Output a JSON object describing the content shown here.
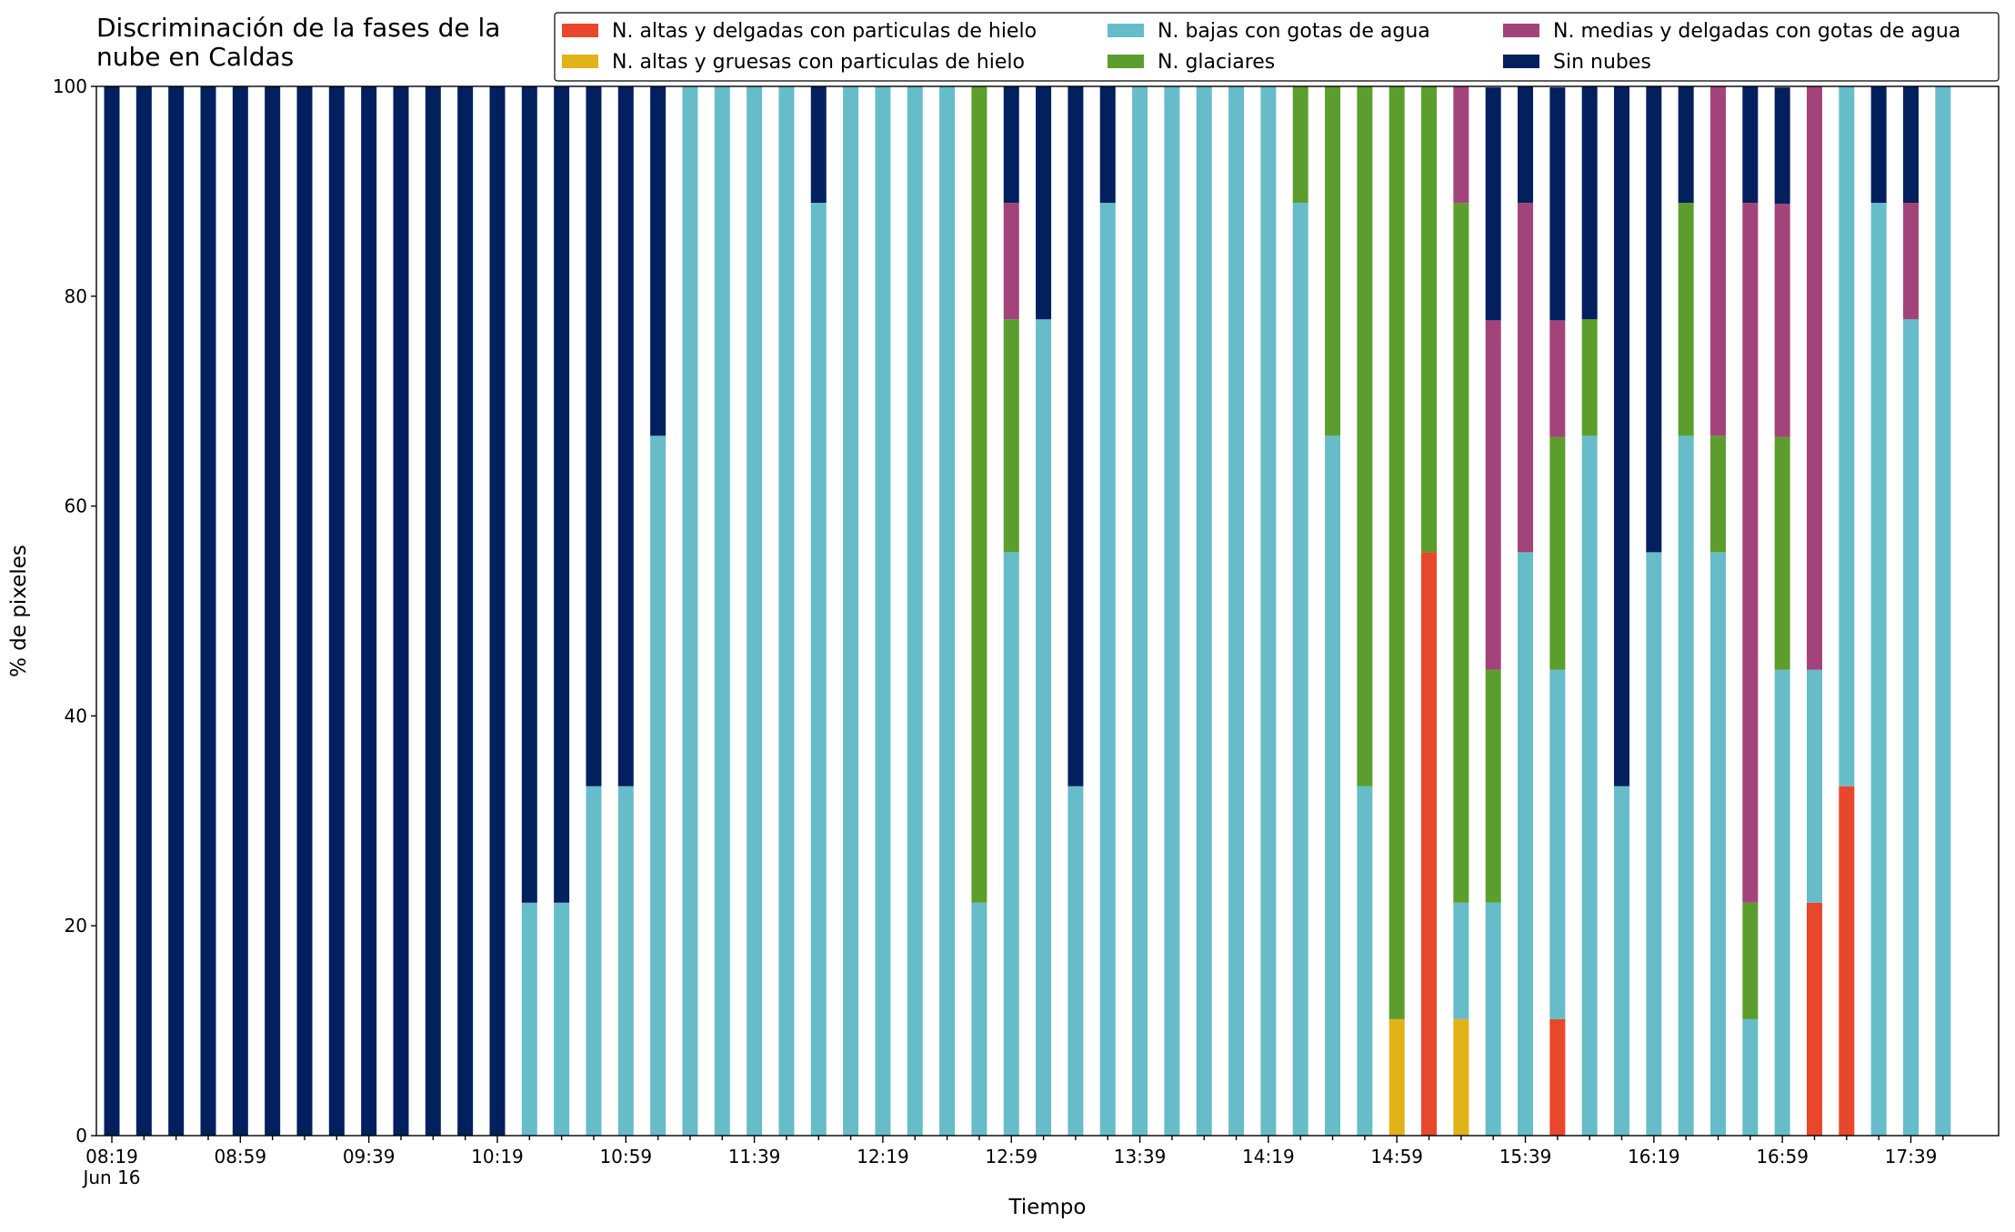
{
  "chart_data": {
    "type": "stacked_bar",
    "title": "Discriminación de la fases de la\nnube en Caldas",
    "x_label": "Tiempo",
    "y_label": "% de pixeles",
    "categories": [
      "08:19\nJun 16",
      null,
      null,
      null,
      "08:59",
      null,
      null,
      null,
      "09:39",
      null,
      null,
      null,
      "10:19",
      null,
      null,
      null,
      "10:59",
      null,
      null,
      null,
      "11:39",
      null,
      null,
      null,
      "12:19",
      null,
      null,
      null,
      "12:59",
      null,
      null,
      null,
      "13:39",
      null,
      null,
      null,
      "14:19",
      null,
      null,
      null,
      "14:59",
      null,
      null,
      null,
      "15:39",
      null,
      null,
      null,
      "16:19",
      null,
      null,
      null,
      "16:59",
      null,
      null,
      null,
      "17:39",
      null
    ],
    "ylim": [
      0,
      100
    ],
    "yticks": [
      0,
      20,
      40,
      60,
      80,
      100
    ],
    "grid": false,
    "legend": "top",
    "series": [
      {
        "name": "N. altas y delgadas con particulas de hielo",
        "color": "#e8472c",
        "values": [
          0,
          0,
          0,
          0,
          0,
          0,
          0,
          0,
          0,
          0,
          0,
          0,
          0,
          0,
          0,
          0,
          0,
          0,
          0,
          0,
          0,
          0,
          0,
          0,
          0,
          0,
          0,
          0,
          0,
          0,
          0,
          0,
          0,
          0,
          0,
          0,
          0,
          0,
          0,
          0,
          0,
          55.6,
          0,
          0,
          0,
          11.1,
          0,
          0,
          0,
          0,
          0,
          0,
          0,
          22.2,
          33.3,
          0,
          0,
          0
        ]
      },
      {
        "name": "N. altas y gruesas con particulas de hielo",
        "color": "#e2b318",
        "values": [
          0,
          0,
          0,
          0,
          0,
          0,
          0,
          0,
          0,
          0,
          0,
          0,
          0,
          0,
          0,
          0,
          0,
          0,
          0,
          0,
          0,
          0,
          0,
          0,
          0,
          0,
          0,
          0,
          0,
          0,
          0,
          0,
          0,
          0,
          0,
          0,
          0,
          0,
          0,
          0,
          11.1,
          0,
          11.1,
          0,
          0,
          0,
          0,
          0,
          0,
          0,
          0,
          0,
          0,
          0,
          0,
          0,
          0,
          0
        ]
      },
      {
        "name": "N. bajas con gotas de agua",
        "color": "#66bdc9",
        "values": [
          0,
          0,
          0,
          0,
          0,
          0,
          0,
          0,
          0,
          0,
          0,
          0,
          0,
          22.2,
          22.2,
          33.3,
          33.3,
          66.7,
          100,
          100,
          100,
          100,
          88.9,
          100,
          100,
          100,
          100,
          22.2,
          55.6,
          77.8,
          33.3,
          88.9,
          100,
          100,
          100,
          100,
          100,
          88.9,
          66.7,
          33.3,
          0,
          0,
          11.1,
          22.2,
          55.6,
          33.3,
          66.7,
          33.3,
          55.6,
          66.7,
          55.6,
          11.1,
          44.4,
          22.2,
          66.7,
          88.9,
          77.8,
          100
        ]
      },
      {
        "name": "N. glaciares",
        "color": "#5c9e2d",
        "values": [
          0,
          0,
          0,
          0,
          0,
          0,
          0,
          0,
          0,
          0,
          0,
          0,
          0,
          0,
          0,
          0,
          0,
          0,
          0,
          0,
          0,
          0,
          0,
          0,
          0,
          0,
          0,
          77.8,
          22.2,
          0,
          0,
          0,
          0,
          0,
          0,
          0,
          0,
          11.1,
          33.3,
          66.7,
          88.9,
          44.4,
          66.7,
          22.2,
          0,
          22.2,
          11.1,
          0,
          0,
          22.2,
          11.1,
          11.1,
          22.2,
          0,
          0,
          0,
          0,
          0
        ]
      },
      {
        "name": "N. medias y delgadas con gotas de agua",
        "color": "#a2447a",
        "values": [
          0,
          0,
          0,
          0,
          0,
          0,
          0,
          0,
          0,
          0,
          0,
          0,
          0,
          0,
          0,
          0,
          0,
          0,
          0,
          0,
          0,
          0,
          0,
          0,
          0,
          0,
          0,
          0,
          11.1,
          0,
          0,
          0,
          0,
          0,
          0,
          0,
          0,
          0,
          0,
          0,
          0,
          0,
          11.1,
          33.3,
          33.3,
          11.1,
          0,
          0,
          0,
          0,
          33.3,
          66.7,
          22.2,
          55.6,
          0,
          0,
          11.1,
          0
        ]
      },
      {
        "name": "Sin nubes",
        "color": "#021f5e",
        "values": [
          100,
          100,
          100,
          100,
          100,
          100,
          100,
          100,
          100,
          100,
          100,
          100,
          100,
          77.8,
          77.8,
          66.7,
          66.7,
          33.3,
          0,
          0,
          0,
          0,
          11.1,
          0,
          0,
          0,
          0,
          0,
          11.1,
          22.2,
          66.7,
          11.1,
          0,
          0,
          0,
          0,
          0,
          0,
          0,
          0,
          0,
          0,
          0,
          22.2,
          11.1,
          22.2,
          22.2,
          66.7,
          44.4,
          11.1,
          0,
          11.1,
          11.1,
          0,
          0,
          11.1,
          11.1,
          0
        ]
      }
    ]
  }
}
